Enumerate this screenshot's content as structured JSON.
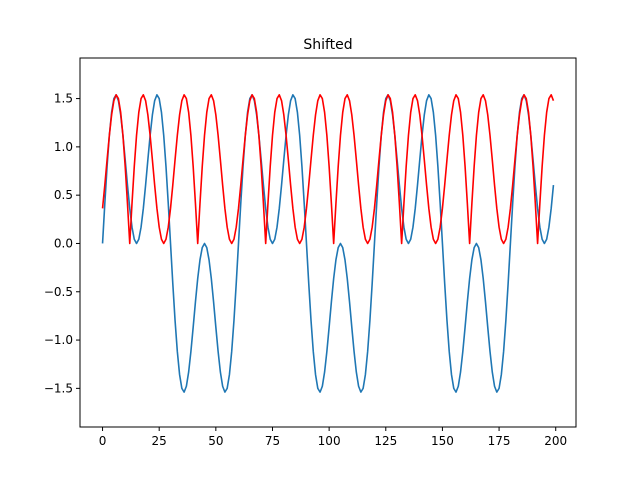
{
  "chart_data": {
    "type": "line",
    "title": "Shifted",
    "xlabel": "",
    "ylabel": "",
    "xlim": [
      -9.95,
      208.95
    ],
    "ylim": [
      -1.9,
      1.92
    ],
    "x_ticks": [
      0,
      25,
      50,
      75,
      100,
      125,
      150,
      175,
      200
    ],
    "x_tick_labels": [
      "0",
      "25",
      "50",
      "75",
      "100",
      "125",
      "150",
      "175",
      "200"
    ],
    "y_ticks": [
      -1.5,
      -1.0,
      -0.5,
      0.0,
      0.5,
      1.0,
      1.5
    ],
    "y_tick_labels": [
      "−1.5",
      "−1.0",
      "−0.5",
      "0.0",
      "0.5",
      "1.0",
      "1.5"
    ],
    "grid": false,
    "legend": "none",
    "x_start": 0,
    "x_end": 199,
    "x_step": 1,
    "series": [
      {
        "color": "#1f77b4",
        "shift": 0,
        "values": "f(t) = sin(2πt/60) + sin(2πt/20), t = 0..199"
      },
      {
        "color": "#ff0000",
        "shift": 12,
        "values": "|f(t − 12)|, t = 0..199"
      }
    ]
  }
}
